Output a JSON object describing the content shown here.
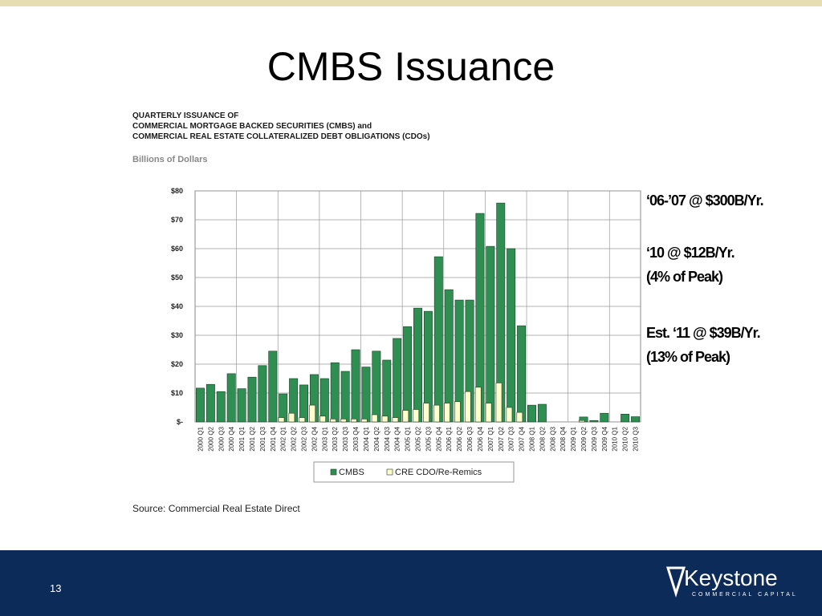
{
  "slide": {
    "title": "CMBS Issuance",
    "page_number": "13",
    "logo": "Keystone",
    "logo_tagline": "COMMERCIAL CAPITAL"
  },
  "chart_data": {
    "type": "bar",
    "title": [
      "QUARTERLY ISSUANCE OF",
      "COMMERCIAL MORTGAGE BACKED SECURITIES (CMBS) and",
      "COMMERCIAL REAL ESTATE COLLATERALIZED DEBT OBLIGATIONS (CDOs)"
    ],
    "subtitle": "Billions of Dollars",
    "categories": [
      "2000 Q1",
      "2000 Q2",
      "2000 Q3",
      "2000 Q4",
      "2001 Q1",
      "2001 Q2",
      "2001 Q3",
      "2001 Q4",
      "2002 Q1",
      "2002 Q2",
      "2002 Q3",
      "2002 Q4",
      "2003 Q1",
      "2003 Q2",
      "2003 Q3",
      "2003 Q4",
      "2004 Q1",
      "2004 Q2",
      "2004 Q3",
      "2004 Q4",
      "2005 Q1",
      "2005 Q2",
      "2005 Q3",
      "2005 Q4",
      "2006 Q1",
      "2006 Q2",
      "2006 Q3",
      "2006 Q4",
      "2007 Q1",
      "2007 Q2",
      "2007 Q3",
      "2007 Q4",
      "2008 Q1",
      "2008 Q2",
      "2008 Q3",
      "2008 Q4",
      "2009 Q1",
      "2009 Q2",
      "2009 Q3",
      "2009 Q4",
      "2010 Q1",
      "2010 Q2",
      "2010 Q3"
    ],
    "series": [
      {
        "name": "CMBS",
        "color": "#2f8f52",
        "values": [
          11.7,
          13,
          10.5,
          16.7,
          11.5,
          15.5,
          19.5,
          24.5,
          9.7,
          15,
          12.8,
          16.4,
          15,
          20.5,
          17.5,
          25,
          19,
          24.5,
          21.4,
          28.9,
          33,
          39.4,
          38.3,
          57.2,
          45.8,
          42.2,
          42.2,
          72.2,
          60.8,
          75.8,
          60,
          33.3,
          5.8,
          6.1,
          0,
          0,
          0,
          1.7,
          0.5,
          3,
          0,
          2.7,
          1.8
        ]
      },
      {
        "name": "CRE CDO/Re-Remics",
        "color": "#ffffcc",
        "values": [
          0,
          0,
          0,
          0,
          0,
          0,
          0,
          0,
          1.5,
          3,
          1.5,
          5.8,
          2,
          1,
          1,
          1,
          1,
          2.5,
          2,
          1.5,
          4,
          4.3,
          6.5,
          5.8,
          6.5,
          7,
          10.5,
          12,
          6.5,
          13.5,
          5,
          3.3,
          0,
          0,
          0,
          0,
          0,
          0.5,
          0,
          0,
          0,
          0,
          0
        ]
      }
    ],
    "ylim": [
      0,
      80
    ],
    "yticks": [
      {
        "value": 0,
        "label": "$-"
      },
      {
        "value": 10,
        "label": "$10"
      },
      {
        "value": 20,
        "label": "$20"
      },
      {
        "value": 30,
        "label": "$30"
      },
      {
        "value": 40,
        "label": "$40"
      },
      {
        "value": 50,
        "label": "$50"
      },
      {
        "value": 60,
        "label": "$60"
      },
      {
        "value": 70,
        "label": "$70"
      },
      {
        "value": 80,
        "label": "$80"
      }
    ],
    "grid": true,
    "legend": "bottom",
    "annotations": [
      "‘06-’07 @ $300B/Yr.",
      "‘10 @ $12B/Yr.",
      "(4% of Peak)",
      "Est. ‘11 @ $39B/Yr.",
      "(13% of Peak)"
    ],
    "source": "Source: Commercial Real Estate Direct"
  }
}
